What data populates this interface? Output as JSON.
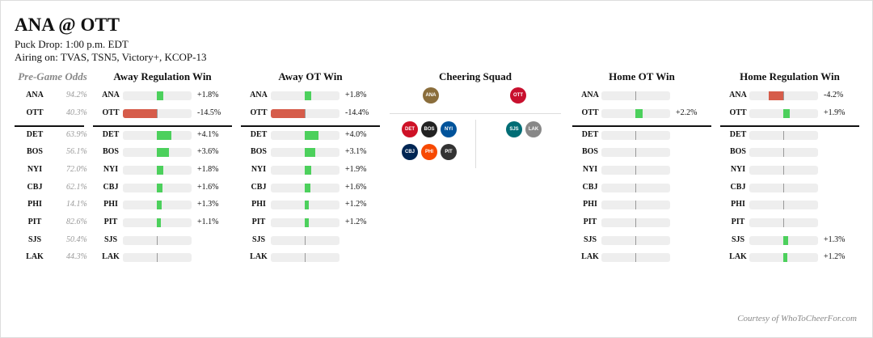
{
  "title": "ANA @ OTT",
  "puck_drop": "Puck Drop: 1:00 p.m. EDT",
  "airing": "Airing on: TVAS, TSN5, Victory+, KCOP-13",
  "colors": {
    "positive": "#4cd05c",
    "negative": "#d65c4a",
    "track": "#eeeeee"
  },
  "teams": [
    "ANA",
    "OTT",
    "DET",
    "BOS",
    "NYI",
    "CBJ",
    "PHI",
    "PIT",
    "SJS",
    "LAK"
  ],
  "pregame": {
    "header": "Pre-Game Odds",
    "values": [
      "94.2%",
      "40.3%",
      "63.9%",
      "56.1%",
      "72.0%",
      "62.1%",
      "14.1%",
      "82.6%",
      "50.4%",
      "44.3%"
    ]
  },
  "columns": [
    {
      "header": "Away Regulation Win",
      "values": [
        1.8,
        -14.5,
        4.1,
        3.6,
        1.8,
        1.6,
        1.3,
        1.1,
        null,
        null
      ],
      "labels": [
        "+1.8%",
        "-14.5%",
        "+4.1%",
        "+3.6%",
        "+1.8%",
        "+1.6%",
        "+1.3%",
        "+1.1%",
        "",
        ""
      ]
    },
    {
      "header": "Away OT Win",
      "values": [
        1.8,
        -14.4,
        4.0,
        3.1,
        1.9,
        1.6,
        1.2,
        1.2,
        null,
        null
      ],
      "labels": [
        "+1.8%",
        "-14.4%",
        "+4.0%",
        "+3.1%",
        "+1.9%",
        "+1.6%",
        "+1.2%",
        "+1.2%",
        "",
        ""
      ]
    },
    {
      "header": "Home OT Win",
      "values": [
        null,
        2.2,
        null,
        null,
        null,
        null,
        null,
        null,
        null,
        null
      ],
      "labels": [
        "",
        "+2.2%",
        "",
        "",
        "",
        "",
        "",
        "",
        "",
        ""
      ]
    },
    {
      "header": "Home Regulation Win",
      "values": [
        -4.2,
        1.9,
        null,
        null,
        null,
        null,
        null,
        null,
        1.3,
        1.2
      ],
      "labels": [
        "-4.2%",
        "+1.9%",
        "",
        "",
        "",
        "",
        "",
        "",
        "+1.3%",
        "+1.2%"
      ]
    }
  ],
  "cheering": {
    "header": "Cheering Squad",
    "logos": [
      {
        "team": "ANA",
        "color": "#8a6d3b"
      },
      {
        "team": "OTT",
        "color": "#c8102e"
      },
      {
        "team": "DET",
        "color": "#ce1126"
      },
      {
        "team": "BOS",
        "color": "#222222"
      },
      {
        "team": "NYI",
        "color": "#00539b"
      },
      {
        "team": "CBJ",
        "color": "#002654"
      },
      {
        "team": "PHI",
        "color": "#f74902"
      },
      {
        "team": "PIT",
        "color": "#333333"
      },
      {
        "team": "SJS",
        "color": "#006d75"
      },
      {
        "team": "LAK",
        "color": "#888888"
      }
    ]
  },
  "footer": "Courtesy of WhoToCheerFor.com"
}
